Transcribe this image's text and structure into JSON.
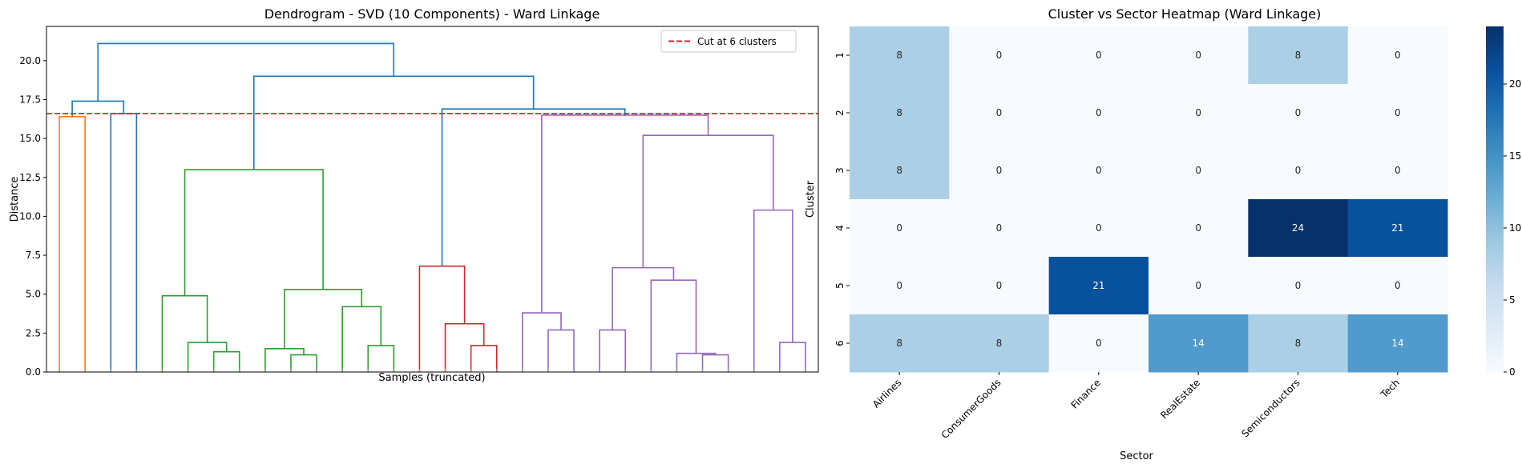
{
  "chart_data": [
    {
      "type": "dendrogram",
      "title": "Dendrogram - SVD (10 Components) - Ward Linkage",
      "xlabel": "Samples (truncated)",
      "ylabel": "Distance",
      "ylim": [
        0,
        22.2
      ],
      "yticks": [
        "0.0",
        "2.5",
        "5.0",
        "7.5",
        "10.0",
        "12.5",
        "15.0",
        "17.5",
        "20.0"
      ],
      "ytick_values": [
        0,
        2.5,
        5,
        7.5,
        10,
        12.5,
        15,
        17.5,
        20
      ],
      "n_leaves": 30,
      "cut": {
        "y": 16.6,
        "label": "Cut at 6 clusters",
        "color": "#d62728"
      },
      "legend_position": "top-right",
      "links": [
        {
          "x": [
            0,
            0,
            1,
            1
          ],
          "y": [
            0,
            16.4,
            16.4,
            0
          ],
          "color": "#ff7f0e"
        },
        {
          "x": [
            2,
            2,
            3,
            3
          ],
          "y": [
            0,
            16.6,
            16.6,
            0
          ],
          "color": "#1f77b4"
        },
        {
          "x": [
            0.5,
            0.5,
            2.5,
            2.5
          ],
          "y": [
            16.4,
            17.4,
            17.4,
            16.6
          ],
          "color": "#1f77b4"
        },
        {
          "x": [
            6,
            6,
            7,
            7
          ],
          "y": [
            0,
            1.3,
            1.3,
            0
          ],
          "color": "#2ca02c"
        },
        {
          "x": [
            5,
            5,
            6.5,
            6.5
          ],
          "y": [
            0,
            1.9,
            1.9,
            1.3
          ],
          "color": "#2ca02c"
        },
        {
          "x": [
            4,
            4,
            5.75,
            5.75
          ],
          "y": [
            0,
            4.9,
            4.9,
            1.9
          ],
          "color": "#2ca02c"
        },
        {
          "x": [
            9,
            9,
            10,
            10
          ],
          "y": [
            0,
            1.1,
            1.1,
            0
          ],
          "color": "#2ca02c"
        },
        {
          "x": [
            8,
            8,
            9.5,
            9.5
          ],
          "y": [
            0,
            1.5,
            1.5,
            1.1
          ],
          "color": "#2ca02c"
        },
        {
          "x": [
            12,
            12,
            13,
            13
          ],
          "y": [
            0,
            1.7,
            1.7,
            0
          ],
          "color": "#2ca02c"
        },
        {
          "x": [
            11,
            11,
            12.5,
            12.5
          ],
          "y": [
            0,
            4.2,
            4.2,
            1.7
          ],
          "color": "#2ca02c"
        },
        {
          "x": [
            8.75,
            8.75,
            11.75,
            11.75
          ],
          "y": [
            1.5,
            5.3,
            5.3,
            4.2
          ],
          "color": "#2ca02c"
        },
        {
          "x": [
            4.875,
            4.875,
            10.25,
            10.25
          ],
          "y": [
            4.9,
            13.0,
            13.0,
            5.3
          ],
          "color": "#2ca02c"
        },
        {
          "x": [
            16,
            16,
            17,
            17
          ],
          "y": [
            0,
            1.7,
            1.7,
            0
          ],
          "color": "#d62728"
        },
        {
          "x": [
            15,
            15,
            16.5,
            16.5
          ],
          "y": [
            0,
            3.1,
            3.1,
            1.7
          ],
          "color": "#d62728"
        },
        {
          "x": [
            14,
            14,
            15.75,
            15.75
          ],
          "y": [
            0,
            6.8,
            6.8,
            3.1
          ],
          "color": "#d62728"
        },
        {
          "x": [
            19,
            19,
            20,
            20
          ],
          "y": [
            0,
            2.7,
            2.7,
            0
          ],
          "color": "#9467bd"
        },
        {
          "x": [
            18,
            18,
            19.5,
            19.5
          ],
          "y": [
            0,
            3.8,
            3.8,
            2.7
          ],
          "color": "#9467bd"
        },
        {
          "x": [
            21,
            21,
            22,
            22
          ],
          "y": [
            0,
            2.7,
            2.7,
            0
          ],
          "color": "#9467bd"
        },
        {
          "x": [
            25,
            25,
            26,
            26
          ],
          "y": [
            0,
            1.1,
            1.1,
            0
          ],
          "color": "#9467bd"
        },
        {
          "x": [
            24,
            24,
            25.5,
            25.5
          ],
          "y": [
            0,
            1.2,
            1.2,
            1.1
          ],
          "color": "#9467bd"
        },
        {
          "x": [
            23,
            23,
            24.75,
            24.75
          ],
          "y": [
            0,
            5.9,
            5.9,
            1.2
          ],
          "color": "#9467bd"
        },
        {
          "x": [
            21.5,
            21.5,
            23.875,
            23.875
          ],
          "y": [
            2.7,
            6.7,
            6.7,
            5.9
          ],
          "color": "#9467bd"
        },
        {
          "x": [
            28,
            28,
            29,
            29
          ],
          "y": [
            0,
            1.9,
            1.9,
            0
          ],
          "color": "#9467bd"
        },
        {
          "x": [
            27,
            27,
            28.5,
            28.5
          ],
          "y": [
            0,
            10.4,
            10.4,
            1.9
          ],
          "color": "#9467bd"
        },
        {
          "x": [
            22.6875,
            22.6875,
            27.75,
            27.75
          ],
          "y": [
            6.7,
            15.2,
            15.2,
            10.4
          ],
          "color": "#9467bd"
        },
        {
          "x": [
            18.75,
            18.75,
            25.21875,
            25.21875
          ],
          "y": [
            3.8,
            16.5,
            16.5,
            15.2
          ],
          "color": "#9467bd"
        },
        {
          "x": [
            14.875,
            14.875,
            21.984375,
            21.984375
          ],
          "y": [
            6.8,
            16.9,
            16.9,
            16.5
          ],
          "color": "#1f77b4"
        },
        {
          "x": [
            7.5625,
            7.5625,
            18.4296875,
            18.4296875
          ],
          "y": [
            13.0,
            19.0,
            19.0,
            16.9
          ],
          "color": "#1f77b4"
        },
        {
          "x": [
            1.5,
            1.5,
            12.99609375,
            12.99609375
          ],
          "y": [
            17.4,
            21.1,
            21.1,
            19.0
          ],
          "color": "#1f77b4"
        }
      ]
    },
    {
      "type": "heatmap",
      "title": "Cluster vs Sector Heatmap (Ward Linkage)",
      "xlabel": "Sector",
      "ylabel": "Cluster",
      "x": [
        "Airlines",
        "ConsumerGoods",
        "Finance",
        "RealEstate",
        "Semiconductors",
        "Tech"
      ],
      "y": [
        "1",
        "2",
        "3",
        "4",
        "5",
        "6"
      ],
      "values": [
        [
          8,
          0,
          0,
          0,
          8,
          0
        ],
        [
          8,
          0,
          0,
          0,
          0,
          0
        ],
        [
          8,
          0,
          0,
          0,
          0,
          0
        ],
        [
          0,
          0,
          0,
          0,
          24,
          21
        ],
        [
          0,
          0,
          21,
          0,
          0,
          0
        ],
        [
          8,
          8,
          0,
          14,
          8,
          14
        ]
      ],
      "colormap": "Blues",
      "vmin": 0,
      "vmax": 24,
      "colorbar_ticks": [
        "0",
        "5",
        "10",
        "15",
        "20"
      ],
      "colorbar_tick_values": [
        0,
        5,
        10,
        15,
        20
      ]
    }
  ]
}
